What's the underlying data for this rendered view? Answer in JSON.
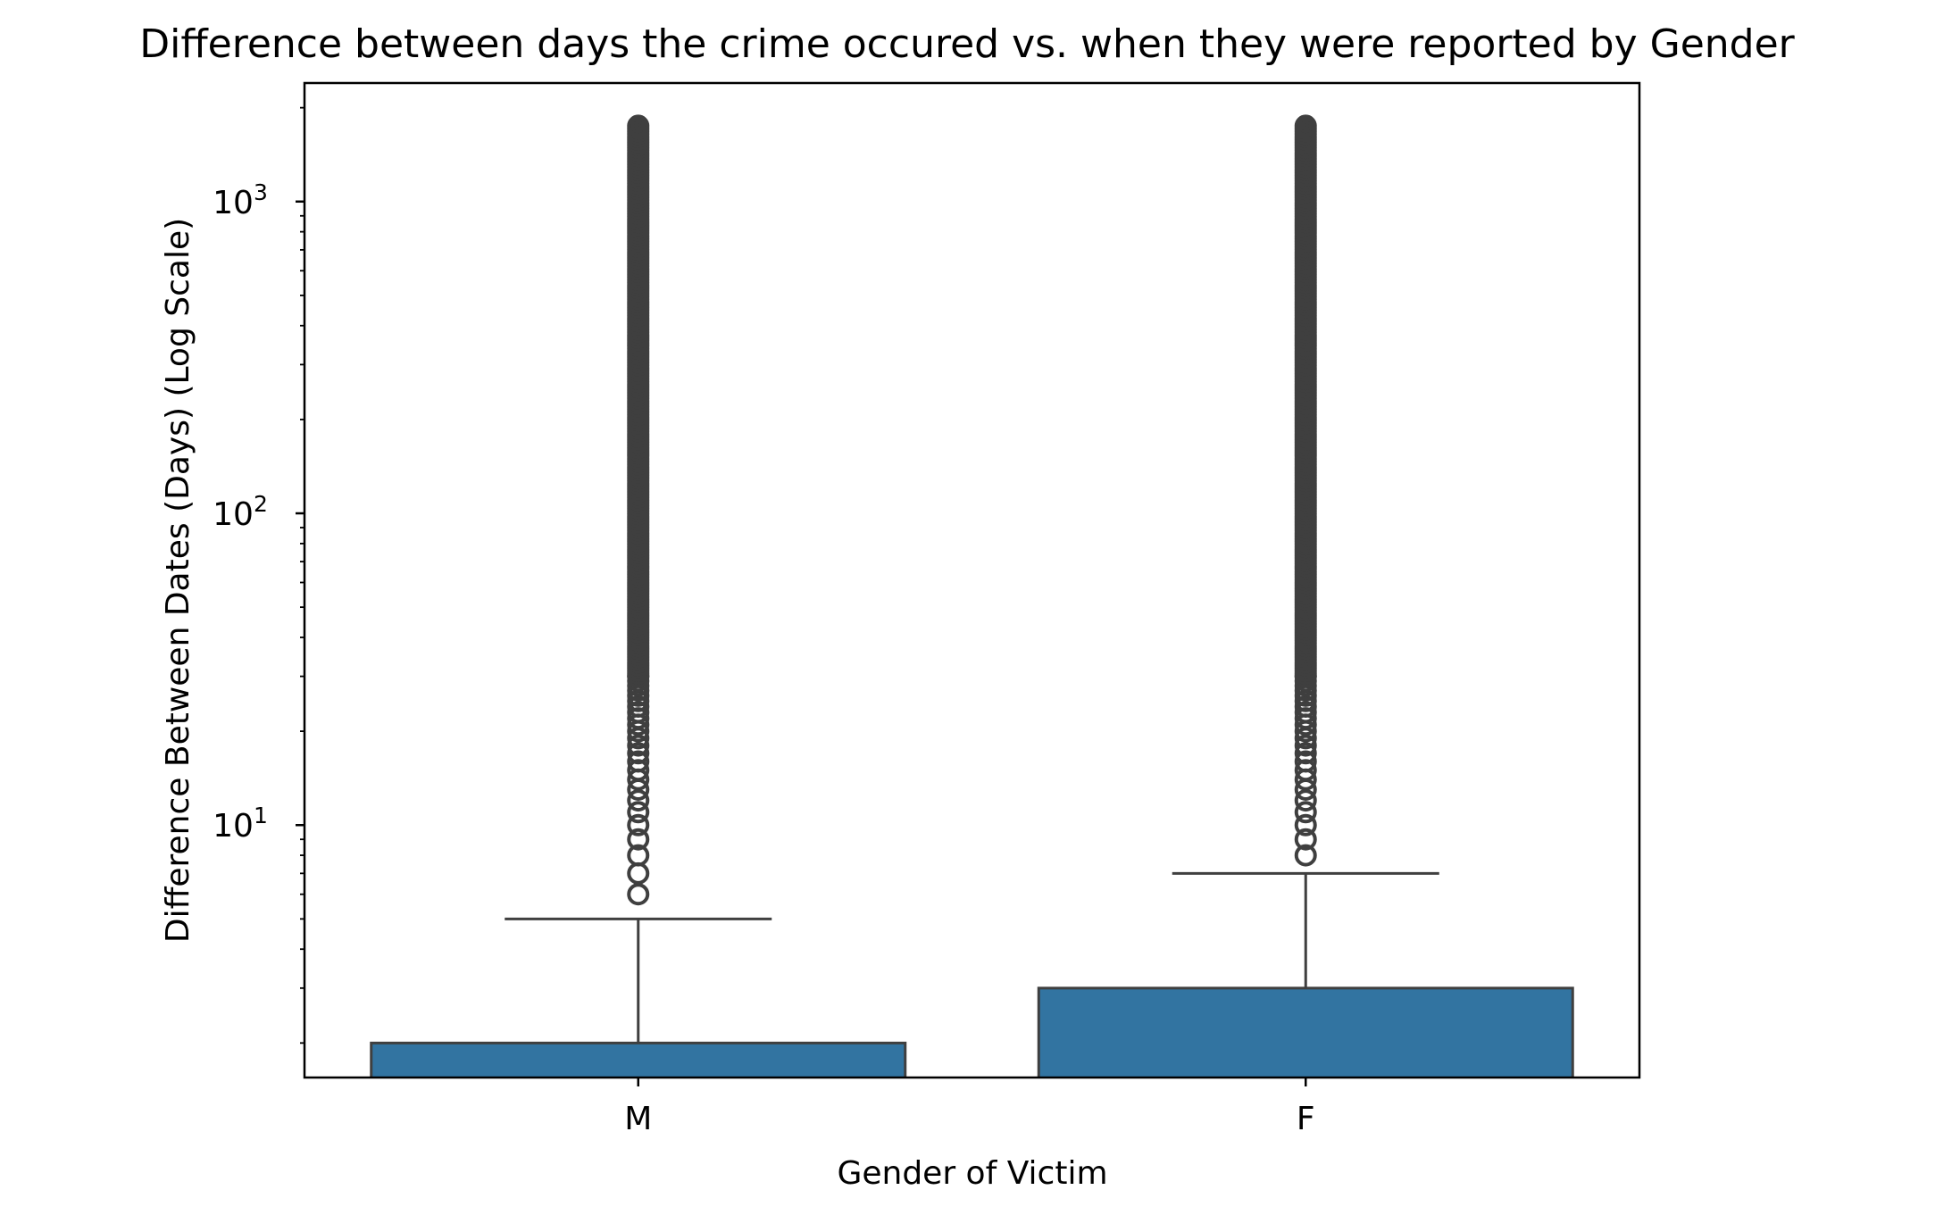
{
  "chart_data": {
    "type": "box",
    "title": "Difference between days the crime occured vs. when they were reported by Gender",
    "xlabel": "Gender of Victim",
    "ylabel": "Difference Between Dates (Days) (Log Scale)",
    "yscale": "log",
    "ylim": [
      1.55,
      2400
    ],
    "yticks": [
      {
        "value": 10,
        "label_base": "10",
        "label_exp": "1"
      },
      {
        "value": 100,
        "label_base": "10",
        "label_exp": "2"
      },
      {
        "value": 1000,
        "label_base": "10",
        "label_exp": "3"
      }
    ],
    "categories": [
      "M",
      "F"
    ],
    "series": [
      {
        "category": "M",
        "q1": 1,
        "median": 1,
        "q3": 2,
        "whisker_low": 0,
        "whisker_high": 5,
        "outlier_min": 6,
        "outlier_max": 1750
      },
      {
        "category": "F",
        "q1": 1,
        "median": 1,
        "q3": 3,
        "whisker_low": 0,
        "whisker_high": 7,
        "outlier_min": 8,
        "outlier_max": 1750
      }
    ],
    "grid": false,
    "legend": "none",
    "colors": {
      "box_fill": "#3274a1",
      "box_edge": "#3f3f3f",
      "outlier": "#3f3f3f",
      "axes": "#000000"
    }
  }
}
